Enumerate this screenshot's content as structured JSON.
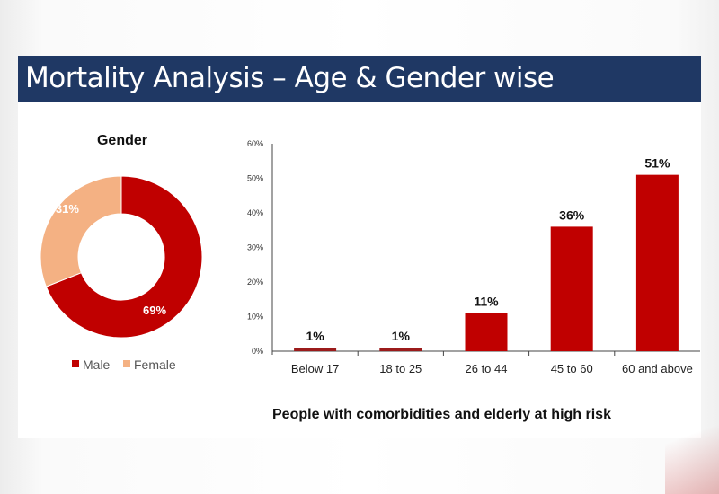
{
  "title": "Mortality Analysis – Age & Gender wise",
  "chart_data": [
    {
      "type": "pie",
      "variant": "donut",
      "title": "Gender",
      "labels": [
        "Male",
        "Female"
      ],
      "values": [
        69,
        31
      ],
      "value_labels": [
        "69%",
        "31%"
      ],
      "colors": [
        "#c00000",
        "#f4b183"
      ],
      "legend": "bottom"
    },
    {
      "type": "bar",
      "categories": [
        "Below 17",
        "18 to 25",
        "26 to 44",
        "45 to 60",
        "60 and above"
      ],
      "values": [
        1,
        1,
        11,
        36,
        51
      ],
      "value_labels": [
        "1%",
        "1%",
        "11%",
        "36%",
        "51%"
      ],
      "ylim": [
        0,
        60
      ],
      "yticks": [
        "0%",
        "10%",
        "20%",
        "30%",
        "40%",
        "50%",
        "60%"
      ],
      "color": "#c00000",
      "grid": false,
      "xlabel": "",
      "ylabel": "",
      "caption": "People with comorbidities and elderly at high risk"
    }
  ]
}
